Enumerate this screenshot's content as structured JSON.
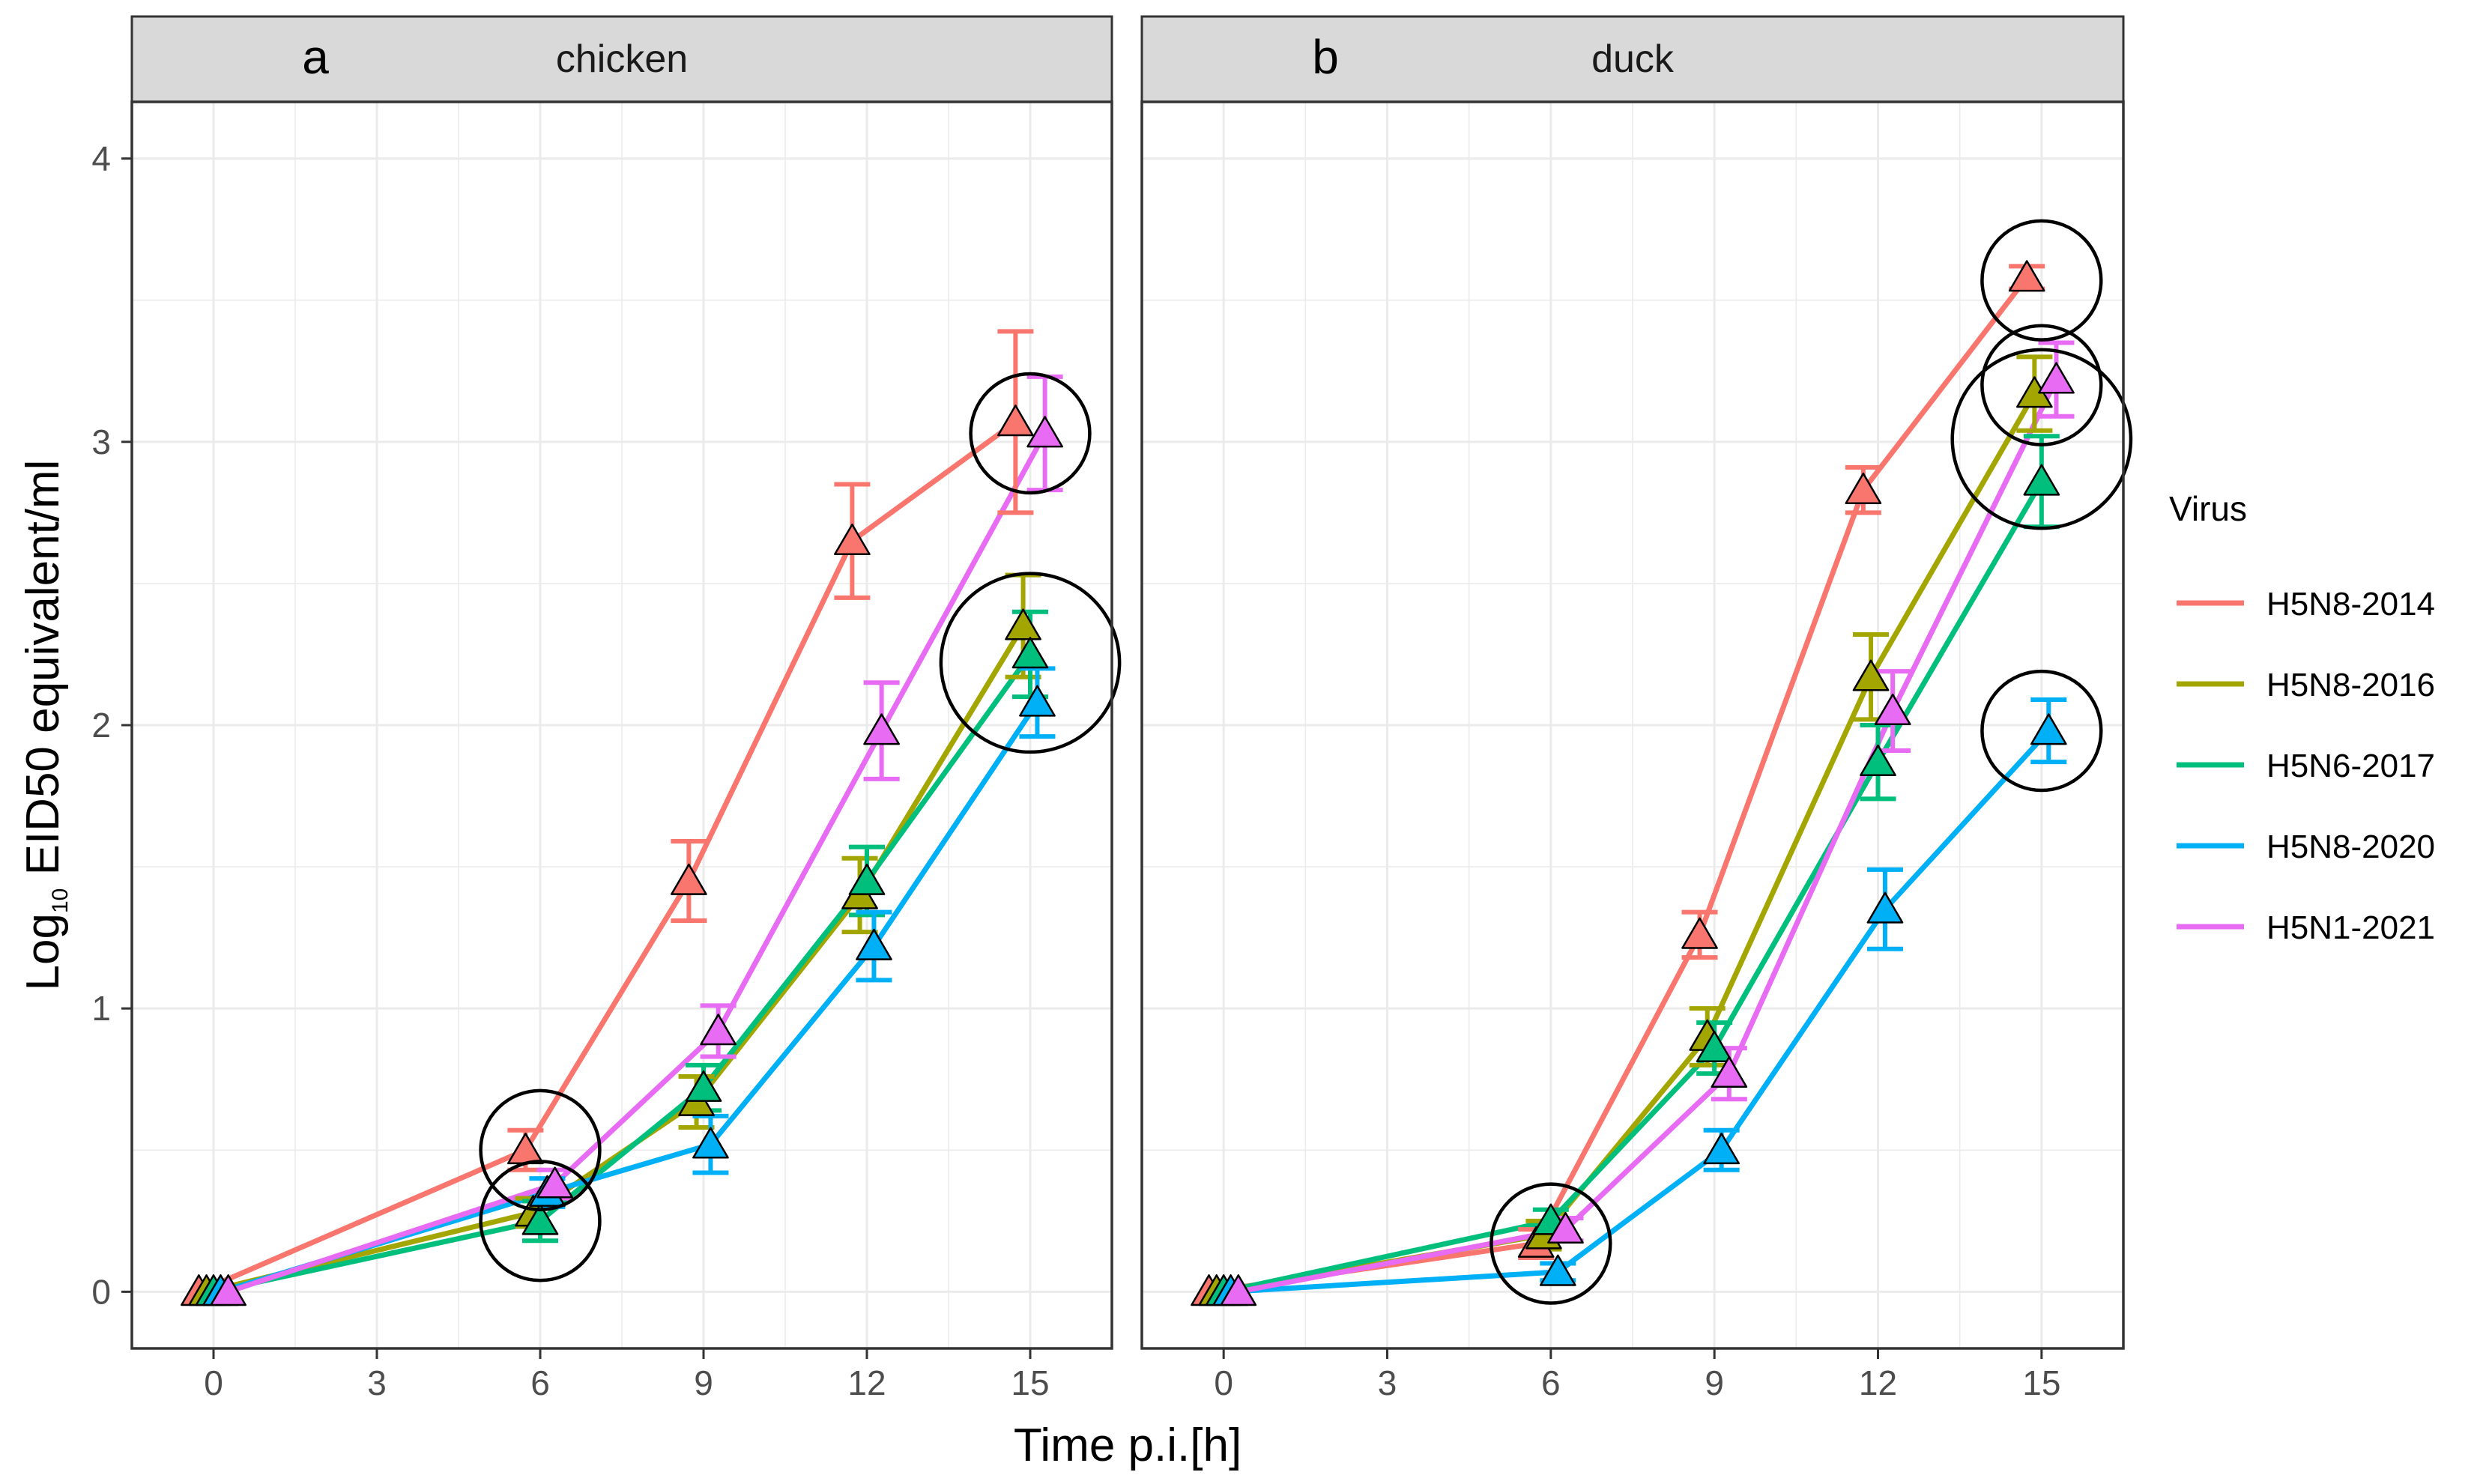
{
  "chart_data": {
    "type": "line",
    "xlabel": "Time p.i.[h]",
    "ylabel": "Log10 EID50 equivalent/ml",
    "ylabel_parts": {
      "prefix": "Log",
      "subscript": "10",
      "suffix": " EID50 equivalent/ml"
    },
    "xlim": [
      -1.5,
      16.5
    ],
    "ylim": [
      -0.2,
      4.2
    ],
    "xticks": [
      0,
      3,
      6,
      9,
      12,
      15
    ],
    "yticks": [
      0,
      1,
      2,
      3,
      4
    ],
    "grid": true,
    "legend": {
      "title": "Virus",
      "placement": "right",
      "entries": [
        "H5N8-2014",
        "H5N8-2016",
        "H5N6-2017",
        "H5N8-2020",
        "H5N1-2021"
      ]
    },
    "colors": {
      "H5N8-2014": "#F8766D",
      "H5N8-2016": "#A3A500",
      "H5N6-2017": "#00BF7D",
      "H5N8-2020": "#00B0F6",
      "H5N1-2021": "#E76BF3"
    },
    "facets": [
      {
        "letter": "a",
        "strip_label": "chicken",
        "series": [
          {
            "name": "H5N8-2014",
            "x": [
              0,
              6,
              9,
              12,
              15
            ],
            "y": [
              0,
              0.5,
              1.45,
              2.65,
              3.07
            ],
            "err": [
              0,
              0.07,
              0.14,
              0.2,
              0.32
            ]
          },
          {
            "name": "H5N8-2016",
            "x": [
              0,
              6,
              9,
              12,
              15
            ],
            "y": [
              0,
              0.28,
              0.67,
              1.4,
              2.35
            ],
            "err": [
              0,
              0.05,
              0.09,
              0.13,
              0.18
            ]
          },
          {
            "name": "H5N6-2017",
            "x": [
              0,
              6,
              9,
              12,
              15
            ],
            "y": [
              0,
              0.25,
              0.72,
              1.45,
              2.25
            ],
            "err": [
              0,
              0.07,
              0.08,
              0.12,
              0.15
            ]
          },
          {
            "name": "H5N8-2020",
            "x": [
              0,
              6,
              9,
              12,
              15
            ],
            "y": [
              0,
              0.35,
              0.52,
              1.22,
              2.08
            ],
            "err": [
              0,
              0.05,
              0.1,
              0.12,
              0.12
            ]
          },
          {
            "name": "H5N1-2021",
            "x": [
              0,
              6,
              9,
              12,
              15
            ],
            "y": [
              0,
              0.38,
              0.92,
              1.98,
              3.03
            ],
            "err": [
              0,
              0.05,
              0.09,
              0.17,
              0.2
            ]
          }
        ],
        "highlight_circles": [
          {
            "x": 6,
            "y": 0.5,
            "r": 0.5
          },
          {
            "x": 6,
            "y": 0.25,
            "r": 0.5
          },
          {
            "x": 15,
            "y": 3.03,
            "r": 0.5
          },
          {
            "x": 15,
            "y": 2.22,
            "r": 0.75
          }
        ]
      },
      {
        "letter": "b",
        "strip_label": "duck",
        "series": [
          {
            "name": "H5N8-2014",
            "x": [
              0,
              6,
              9,
              12,
              15
            ],
            "y": [
              0,
              0.17,
              1.26,
              2.83,
              3.58
            ],
            "err": [
              0,
              0.05,
              0.08,
              0.08,
              0.04
            ]
          },
          {
            "name": "H5N8-2016",
            "x": [
              0,
              6,
              9,
              12,
              15
            ],
            "y": [
              0,
              0.2,
              0.9,
              2.17,
              3.17
            ],
            "err": [
              0,
              0.05,
              0.1,
              0.15,
              0.13
            ]
          },
          {
            "name": "H5N6-2017",
            "x": [
              0,
              6,
              9,
              12,
              15
            ],
            "y": [
              0,
              0.25,
              0.86,
              1.87,
              2.86
            ],
            "err": [
              0,
              0.04,
              0.09,
              0.13,
              0.16
            ]
          },
          {
            "name": "H5N8-2020",
            "x": [
              0,
              6,
              9,
              12,
              15
            ],
            "y": [
              0,
              0.07,
              0.5,
              1.35,
              1.98
            ],
            "err": [
              0,
              0.03,
              0.07,
              0.14,
              0.11
            ]
          },
          {
            "name": "H5N1-2021",
            "x": [
              0,
              6,
              9,
              12,
              15
            ],
            "y": [
              0,
              0.22,
              0.77,
              2.05,
              3.22
            ],
            "err": [
              0,
              0.04,
              0.09,
              0.14,
              0.13
            ]
          }
        ],
        "highlight_circles": [
          {
            "x": 6,
            "y": 0.17,
            "r": 0.5
          },
          {
            "x": 15,
            "y": 3.57,
            "r": 0.5
          },
          {
            "x": 15,
            "y": 3.2,
            "r": 0.5
          },
          {
            "x": 15,
            "y": 3.01,
            "r": 0.75
          },
          {
            "x": 15,
            "y": 1.98,
            "r": 0.5
          }
        ]
      }
    ]
  }
}
